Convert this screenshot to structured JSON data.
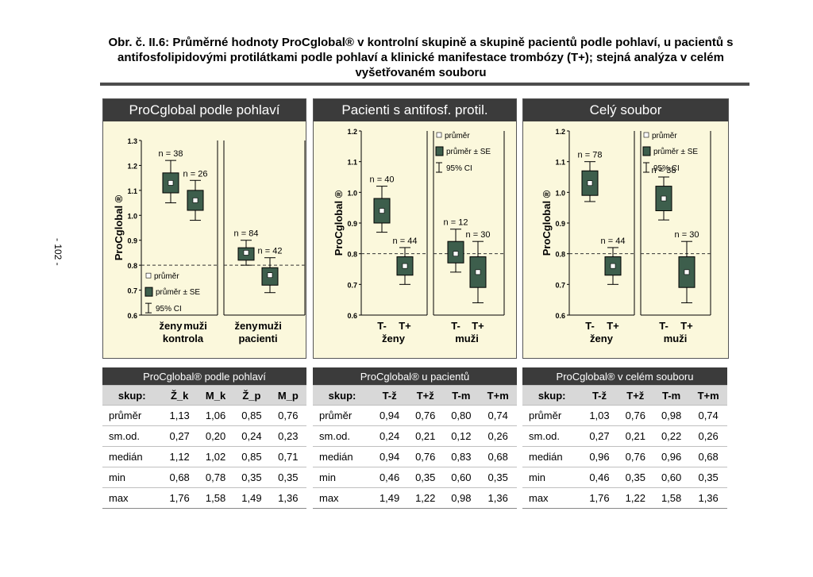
{
  "caption": "Obr. č. II.6: Průměrné hodnoty ProCglobal® v kontrolní skupině a skupině pacientů podle pohlaví, u pacientů s antifosfolipidovými protilátkami podle pohlaví a klinické manifestace trombózy (T+); stejná analýza v celém vyšetřovaném souboru",
  "page_number": "- 102 -",
  "colors": {
    "box": "#3d5e4c",
    "panel_bg": "#fbf8dc",
    "header_bg": "#3b3b3b"
  },
  "chart_data": [
    {
      "type": "box",
      "title": "ProCglobal podle pohlaví",
      "ylabel": "ProCglobal ®",
      "ylim": [
        0.6,
        1.3
      ],
      "yticks": [
        "0.6",
        "0.7",
        "0.8",
        "0.9",
        "1.0",
        "1.1",
        "1.2",
        "1.3"
      ],
      "reference_line": 0.8,
      "categories": [
        "ženy",
        "muži",
        "ženy",
        "muži"
      ],
      "groups": [
        "kontrola",
        "pacienti"
      ],
      "legend": [
        "průměr",
        "průměr ± SE",
        "95% CI"
      ],
      "legend_position": "bottom-left",
      "series": [
        {
          "n_label": "n = 38",
          "mean": 1.13,
          "se_low": 1.09,
          "se_high": 1.17,
          "ci_low": 1.05,
          "ci_high": 1.22
        },
        {
          "n_label": "n = 26",
          "mean": 1.06,
          "se_low": 1.02,
          "se_high": 1.1,
          "ci_low": 0.98,
          "ci_high": 1.14
        },
        {
          "n_label": "n = 84",
          "mean": 0.85,
          "se_low": 0.82,
          "se_high": 0.87,
          "ci_low": 0.8,
          "ci_high": 0.9
        },
        {
          "n_label": "n = 42",
          "mean": 0.76,
          "se_low": 0.72,
          "se_high": 0.79,
          "ci_low": 0.69,
          "ci_high": 0.83
        }
      ]
    },
    {
      "type": "box",
      "title": "Pacienti s antifosf. protil.",
      "ylabel": "ProCglobal ®",
      "ylim": [
        0.6,
        1.2
      ],
      "yticks": [
        "0.6",
        "0.7",
        "0.8",
        "0.9",
        "1.0",
        "1.1",
        "1.2"
      ],
      "reference_line": 0.8,
      "categories": [
        "T-",
        "T+",
        "T-",
        "T+"
      ],
      "groups": [
        "ženy",
        "muži"
      ],
      "legend": [
        "průměr",
        "průměr ± SE",
        "95% CI"
      ],
      "legend_position": "top-right",
      "series": [
        {
          "n_label": "n = 40",
          "mean": 0.94,
          "se_low": 0.9,
          "se_high": 0.98,
          "ci_low": 0.87,
          "ci_high": 1.02
        },
        {
          "n_label": "n = 44",
          "mean": 0.76,
          "se_low": 0.73,
          "se_high": 0.79,
          "ci_low": 0.7,
          "ci_high": 0.82
        },
        {
          "n_label": "n = 12",
          "mean": 0.8,
          "se_low": 0.77,
          "se_high": 0.84,
          "ci_low": 0.74,
          "ci_high": 0.88
        },
        {
          "n_label": "n = 30",
          "mean": 0.74,
          "se_low": 0.69,
          "se_high": 0.79,
          "ci_low": 0.64,
          "ci_high": 0.84
        }
      ]
    },
    {
      "type": "box",
      "title": "Celý soubor",
      "ylabel": "ProCglobal ®",
      "ylim": [
        0.6,
        1.2
      ],
      "yticks": [
        "0.6",
        "0.7",
        "0.8",
        "0.9",
        "1.0",
        "1.1",
        "1.2"
      ],
      "reference_line": 0.8,
      "categories": [
        "T-",
        "T+",
        "T-",
        "T+"
      ],
      "groups": [
        "ženy",
        "muži"
      ],
      "legend": [
        "průměr",
        "průměr ± SE",
        "95% CI"
      ],
      "legend_position": "top-right",
      "series": [
        {
          "n_label": "n = 78",
          "mean": 1.03,
          "se_low": 0.99,
          "se_high": 1.07,
          "ci_low": 0.97,
          "ci_high": 1.1
        },
        {
          "n_label": "n = 44",
          "mean": 0.76,
          "se_low": 0.73,
          "se_high": 0.79,
          "ci_low": 0.7,
          "ci_high": 0.82
        },
        {
          "n_label": "n = 38",
          "mean": 0.98,
          "se_low": 0.94,
          "se_high": 1.02,
          "ci_low": 0.91,
          "ci_high": 1.05
        },
        {
          "n_label": "n = 30",
          "mean": 0.74,
          "se_low": 0.69,
          "se_high": 0.79,
          "ci_low": 0.64,
          "ci_high": 0.84
        }
      ]
    }
  ],
  "tables": [
    {
      "title": "ProCglobal® podle pohlaví",
      "headers": [
        "skup:",
        "Ž_k",
        "M_k",
        "Ž_p",
        "M_p"
      ],
      "rows": [
        [
          "průměr",
          "1,13",
          "1,06",
          "0,85",
          "0,76"
        ],
        [
          "sm.od.",
          "0,27",
          "0,20",
          "0,24",
          "0,23"
        ],
        [
          "medián",
          "1,12",
          "1,02",
          "0,85",
          "0,71"
        ],
        [
          "min",
          "0,68",
          "0,78",
          "0,35",
          "0,35"
        ],
        [
          "max",
          "1,76",
          "1,58",
          "1,49",
          "1,36"
        ]
      ]
    },
    {
      "title": "ProCglobal® u pacientů",
      "headers": [
        "skup:",
        "T-ž",
        "T+ž",
        "T-m",
        "T+m"
      ],
      "rows": [
        [
          "průměr",
          "0,94",
          "0,76",
          "0,80",
          "0,74"
        ],
        [
          "sm.od.",
          "0,24",
          "0,21",
          "0,12",
          "0,26"
        ],
        [
          "medián",
          "0,94",
          "0,76",
          "0,83",
          "0,68"
        ],
        [
          "min",
          "0,46",
          "0,35",
          "0,60",
          "0,35"
        ],
        [
          "max",
          "1,49",
          "1,22",
          "0,98",
          "1,36"
        ]
      ]
    },
    {
      "title": "ProCglobal® v celém souboru",
      "headers": [
        "skup:",
        "T-ž",
        "T+ž",
        "T-m",
        "T+m"
      ],
      "rows": [
        [
          "průměr",
          "1,03",
          "0,76",
          "0,98",
          "0,74"
        ],
        [
          "sm.od.",
          "0,27",
          "0,21",
          "0,22",
          "0,26"
        ],
        [
          "medián",
          "0,96",
          "0,76",
          "0,96",
          "0,68"
        ],
        [
          "min",
          "0,46",
          "0,35",
          "0,60",
          "0,35"
        ],
        [
          "max",
          "1,76",
          "1,22",
          "1,58",
          "1,36"
        ]
      ]
    }
  ]
}
